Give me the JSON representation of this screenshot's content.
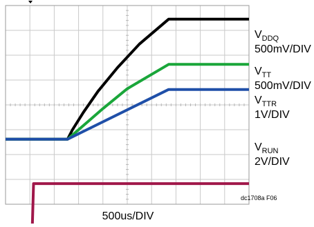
{
  "chart_data": {
    "type": "line",
    "xlabel": "500us/DIV",
    "footnote": "dc1708a F06",
    "x_divisions": 10,
    "y_divisions": 8,
    "grid": true,
    "units": "x in divisions (500us/DIV), y in divisions from top edge of screen",
    "series": [
      {
        "name": "VDDQ",
        "label_main": "V",
        "label_sub": "DDQ",
        "scale": "500mV/DIV",
        "color": "#000000",
        "points": [
          [
            0,
            5.38
          ],
          [
            2.55,
            5.38
          ],
          [
            2.75,
            5.0
          ],
          [
            3.2,
            4.3
          ],
          [
            3.8,
            3.45
          ],
          [
            4.6,
            2.5
          ],
          [
            5.5,
            1.55
          ],
          [
            6.7,
            0.55
          ],
          [
            10,
            0.55
          ]
        ]
      },
      {
        "name": "VTT",
        "label_main": "V",
        "label_sub": "TT",
        "scale": "500mV/DIV",
        "color": "#1aa63a",
        "points": [
          [
            0,
            5.38
          ],
          [
            2.55,
            5.38
          ],
          [
            3.0,
            5.0
          ],
          [
            4.0,
            4.15
          ],
          [
            5.0,
            3.35
          ],
          [
            6.7,
            2.37
          ],
          [
            10,
            2.37
          ]
        ]
      },
      {
        "name": "VTTR",
        "label_main": "V",
        "label_sub": "TTR",
        "scale": "1V/DIV",
        "color": "#1f4fa8",
        "points": [
          [
            0,
            5.38
          ],
          [
            2.55,
            5.38
          ],
          [
            6.7,
            3.38
          ],
          [
            10,
            3.38
          ]
        ]
      },
      {
        "name": "VRUN",
        "label_main": "V",
        "label_sub": "RUN",
        "scale": "2V/DIV",
        "color": "#a0174a",
        "points": [
          [
            0,
            8.92
          ],
          [
            1.1,
            8.92
          ],
          [
            1.15,
            7.17
          ],
          [
            10,
            7.17
          ]
        ]
      }
    ]
  }
}
